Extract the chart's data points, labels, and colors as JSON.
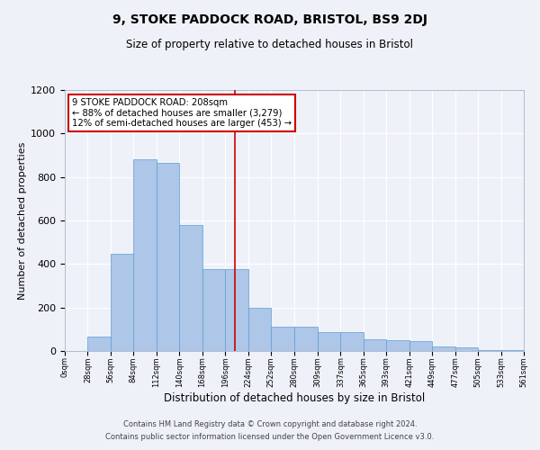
{
  "title": "9, STOKE PADDOCK ROAD, BRISTOL, BS9 2DJ",
  "subtitle": "Size of property relative to detached houses in Bristol",
  "xlabel": "Distribution of detached houses by size in Bristol",
  "ylabel": "Number of detached properties",
  "bar_values": [
    0,
    65,
    445,
    880,
    865,
    580,
    375,
    375,
    200,
    110,
    110,
    85,
    85,
    55,
    50,
    45,
    20,
    15,
    5,
    5,
    0
  ],
  "bin_edges": [
    0,
    28,
    56,
    84,
    112,
    140,
    168,
    196,
    224,
    252,
    280,
    309,
    337,
    365,
    393,
    421,
    449,
    477,
    505,
    533,
    561
  ],
  "tick_labels": [
    "0sqm",
    "28sqm",
    "56sqm",
    "84sqm",
    "112sqm",
    "140sqm",
    "168sqm",
    "196sqm",
    "224sqm",
    "252sqm",
    "280sqm",
    "309sqm",
    "337sqm",
    "365sqm",
    "393sqm",
    "421sqm",
    "449sqm",
    "477sqm",
    "505sqm",
    "533sqm",
    "561sqm"
  ],
  "bar_color": "#aec6e8",
  "bar_edge_color": "#5a9fd4",
  "vline_x": 208,
  "vline_color": "#cc0000",
  "annotation_line1": "9 STOKE PADDOCK ROAD: 208sqm",
  "annotation_line2": "← 88% of detached houses are smaller (3,279)",
  "annotation_line3": "12% of semi-detached houses are larger (453) →",
  "ylim": [
    0,
    1200
  ],
  "yticks": [
    0,
    200,
    400,
    600,
    800,
    1000,
    1200
  ],
  "background_color": "#eef2f8",
  "footer_line1": "Contains HM Land Registry data © Crown copyright and database right 2024.",
  "footer_line2": "Contains public sector information licensed under the Open Government Licence v3.0."
}
